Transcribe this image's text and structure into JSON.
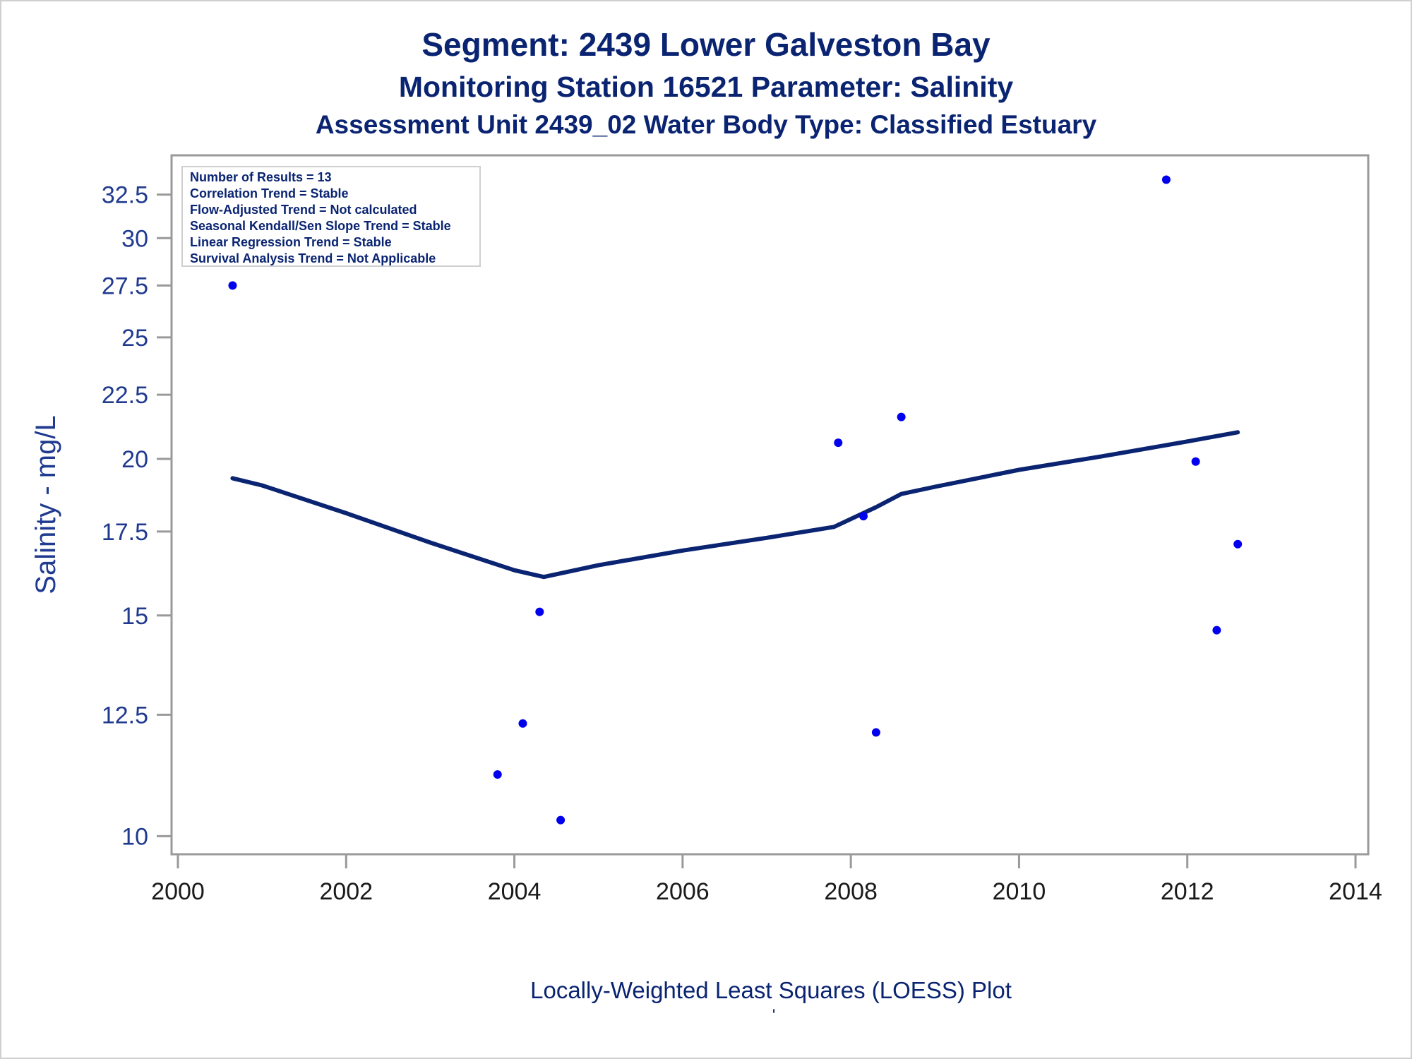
{
  "titles": {
    "line1": "Segment: 2439  Lower Galveston Bay",
    "line2": "Monitoring Station 16521 Parameter: Salinity",
    "line3": "Assessment Unit 2439_02   Water Body Type: Classified Estuary"
  },
  "info_box": [
    "Number of Results = 13",
    "Correlation Trend = Stable",
    "Flow-Adjusted Trend = Not calculated",
    "Seasonal Kendall/Sen Slope Trend = Stable",
    "Linear Regression Trend = Stable",
    "Survival Analysis Trend = Not Applicable"
  ],
  "footnote": "Locally-Weighted Least Squares (LOESS) Plot",
  "footnote_mark": "'",
  "colors": {
    "title": "#0a2472",
    "axis_label": "#1f3a8f",
    "tick_label": "#1a1a1a",
    "points": "#0000ee",
    "loess_line": "#0a2472",
    "frame": "#9a9a9a"
  },
  "chart_data": {
    "type": "scatter",
    "ylabel": "Salinity - mg/L",
    "xlabel": "",
    "y_scale": "log",
    "xlim": [
      2000,
      2014
    ],
    "ylim": [
      9.8,
      34.3
    ],
    "x_ticks": [
      2000,
      2002,
      2004,
      2006,
      2008,
      2010,
      2012,
      2014
    ],
    "y_ticks": [
      10,
      12.5,
      15,
      17.5,
      20,
      22.5,
      25,
      27.5,
      30,
      32.5
    ],
    "y_tick_labels": [
      "10",
      "12.5",
      "15",
      "17.5",
      "20",
      "22.5",
      "25",
      "27.5",
      "30",
      "32.5"
    ],
    "grid": false,
    "legend": "none",
    "series": [
      {
        "type": "scatter",
        "points": [
          {
            "x": 2000.65,
            "y": 27.5
          },
          {
            "x": 2003.8,
            "y": 11.2
          },
          {
            "x": 2004.1,
            "y": 12.3
          },
          {
            "x": 2004.3,
            "y": 15.1
          },
          {
            "x": 2004.55,
            "y": 10.3
          },
          {
            "x": 2007.85,
            "y": 20.6
          },
          {
            "x": 2008.15,
            "y": 18.0
          },
          {
            "x": 2008.3,
            "y": 12.1
          },
          {
            "x": 2008.6,
            "y": 21.6
          },
          {
            "x": 2011.75,
            "y": 33.4
          },
          {
            "x": 2012.1,
            "y": 19.9
          },
          {
            "x": 2012.35,
            "y": 14.6
          },
          {
            "x": 2012.6,
            "y": 17.1
          }
        ]
      },
      {
        "type": "line",
        "points": [
          {
            "x": 2000.65,
            "y": 19.3
          },
          {
            "x": 2001.0,
            "y": 19.05
          },
          {
            "x": 2002.0,
            "y": 18.1
          },
          {
            "x": 2003.0,
            "y": 17.15
          },
          {
            "x": 2004.0,
            "y": 16.3
          },
          {
            "x": 2004.35,
            "y": 16.1
          },
          {
            "x": 2005.0,
            "y": 16.45
          },
          {
            "x": 2006.0,
            "y": 16.9
          },
          {
            "x": 2007.0,
            "y": 17.3
          },
          {
            "x": 2007.8,
            "y": 17.65
          },
          {
            "x": 2008.3,
            "y": 18.3
          },
          {
            "x": 2008.6,
            "y": 18.75
          },
          {
            "x": 2009.0,
            "y": 19.0
          },
          {
            "x": 2010.0,
            "y": 19.6
          },
          {
            "x": 2011.0,
            "y": 20.1
          },
          {
            "x": 2012.0,
            "y": 20.65
          },
          {
            "x": 2012.6,
            "y": 21.0
          }
        ]
      }
    ]
  }
}
